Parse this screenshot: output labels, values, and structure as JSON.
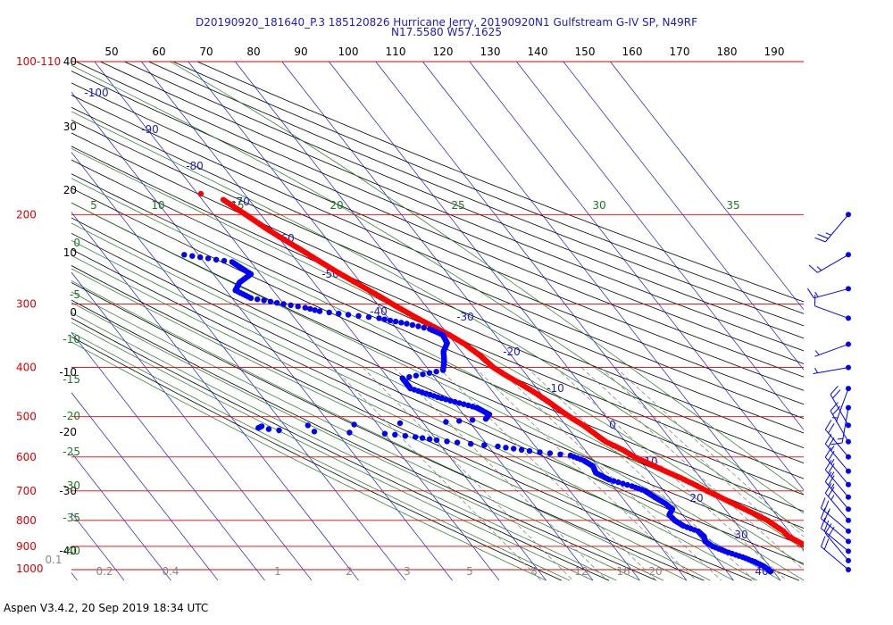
{
  "title": {
    "line1": "D20190920_181640_P.3 185120826 Hurricane Jerry, 20190920N1 Gulfstream G-IV SP, N49RF",
    "line2": "N17.5580 W57.1625"
  },
  "footer": "Aspen V3.4.2, 20 Sep 2019  18:34 UTC",
  "colors": {
    "isobar": "#dd0000",
    "isotherm": "#1a1acc",
    "dry_adiabat": "#000000",
    "moist_adiabat": "#1a7a1a",
    "mixing_ratio": "#888888",
    "temperature": "#ff0000",
    "dewpoint": "#0000ff"
  },
  "chart_data": {
    "type": "line",
    "title": "",
    "pressure_axis_labels": [
      "100-110",
      "200",
      "300",
      "400",
      "500",
      "600",
      "700",
      "800",
      "900",
      "1000"
    ],
    "pressure_label_values": [
      100,
      200,
      300,
      400,
      500,
      600,
      700,
      800,
      900,
      1000
    ],
    "temperature_axis_labels": [
      "50",
      "60",
      "70",
      "80",
      "90",
      "100",
      "110",
      "120",
      "130",
      "140",
      "150",
      "160",
      "170",
      "180",
      "190"
    ],
    "isotherm_labels": [
      "-100",
      "-90",
      "-80",
      "-70",
      "-60",
      "-50",
      "-40",
      "-30",
      "-20",
      "-10",
      "0",
      "10",
      "20",
      "30",
      "40"
    ],
    "isotherm_label_values": [
      -100,
      -90,
      -80,
      -70,
      -60,
      -50,
      -40,
      -30,
      -20,
      -10,
      0,
      10,
      20,
      30,
      40
    ],
    "left_scale_labels": [
      "40",
      "30",
      "20",
      "10",
      "0",
      "-10",
      "-20",
      "-30",
      "-40"
    ],
    "moist_adiabat_labels": [
      "5",
      "10",
      "15",
      "20",
      "25",
      "30",
      "35"
    ],
    "moist_left_labels": [
      "0",
      "-5",
      "-10",
      "-15",
      "-20",
      "-25",
      "-30",
      "-35",
      "-40"
    ],
    "mixing_ratio_labels": [
      "0.1",
      "0.2",
      "0.4",
      "1",
      "2",
      "3",
      "5",
      "8",
      "12",
      "16",
      "20"
    ],
    "series": [
      {
        "name": "Temperature",
        "points": [
          [
            187,
            -45.5
          ],
          [
            200,
            -43.2
          ],
          [
            215,
            -40.8
          ],
          [
            235,
            -37.2
          ],
          [
            255,
            -34.0
          ],
          [
            275,
            -30.6
          ],
          [
            290,
            -28.2
          ],
          [
            300,
            -26.8
          ],
          [
            315,
            -24.6
          ],
          [
            330,
            -22.2
          ],
          [
            345,
            -19.8
          ],
          [
            360,
            -18.0
          ],
          [
            380,
            -16.6
          ],
          [
            400,
            -15.8
          ],
          [
            415,
            -14.4
          ],
          [
            430,
            -12.8
          ],
          [
            450,
            -11.0
          ],
          [
            470,
            -9.6
          ],
          [
            490,
            -8.4
          ],
          [
            505,
            -7.4
          ],
          [
            520,
            -6.2
          ],
          [
            540,
            -5.2
          ],
          [
            560,
            -4.2
          ],
          [
            580,
            -2.0
          ],
          [
            600,
            -0.6
          ],
          [
            620,
            1.6
          ],
          [
            640,
            3.6
          ],
          [
            660,
            5.8
          ],
          [
            680,
            7.6
          ],
          [
            700,
            9.2
          ],
          [
            720,
            11.0
          ],
          [
            740,
            12.6
          ],
          [
            760,
            14.2
          ],
          [
            780,
            15.8
          ],
          [
            800,
            17.2
          ],
          [
            820,
            18.0
          ],
          [
            840,
            18.8
          ],
          [
            860,
            19.0
          ],
          [
            880,
            20.2
          ],
          [
            900,
            21.2
          ],
          [
            920,
            22.0
          ],
          [
            940,
            22.6
          ],
          [
            960,
            23.8
          ],
          [
            980,
            25.6
          ],
          [
            1000,
            27.4
          ],
          [
            1008,
            28.2
          ]
        ]
      },
      {
        "name": "Dewpoint",
        "points": [
          [
            240,
            -63.0
          ],
          [
            248,
            -54.0
          ],
          [
            262,
            -52.0
          ],
          [
            272,
            -55.8
          ],
          [
            282,
            -58.0
          ],
          [
            292,
            -56.0
          ],
          [
            300,
            -50.0
          ],
          [
            305,
            -46.0
          ],
          [
            310,
            -43.5
          ],
          [
            315,
            -38.0
          ],
          [
            320,
            -32.0
          ],
          [
            328,
            -27.0
          ],
          [
            336,
            -23.0
          ],
          [
            345,
            -21.2
          ],
          [
            358,
            -21.6
          ],
          [
            372,
            -23.8
          ],
          [
            388,
            -25.2
          ],
          [
            405,
            -27.0
          ],
          [
            420,
            -37.0
          ],
          [
            440,
            -37.0
          ],
          [
            460,
            -32.0
          ],
          [
            480,
            -26.0
          ],
          [
            495,
            -24.5
          ],
          [
            505,
            -26.0
          ],
          [
            512,
            -35.0
          ],
          [
            518,
            -55.0
          ],
          [
            522,
            -75.0
          ],
          [
            526,
            -76.0
          ],
          [
            532,
            -72.0
          ],
          [
            540,
            -50.0
          ],
          [
            548,
            -44.0
          ],
          [
            556,
            -40.0
          ],
          [
            562,
            -36.0
          ],
          [
            572,
            -28.0
          ],
          [
            584,
            -22.0
          ],
          [
            596,
            -14.0
          ],
          [
            610,
            -12.0
          ],
          [
            625,
            -11.0
          ],
          [
            645,
            -11.5
          ],
          [
            665,
            -9.8
          ],
          [
            685,
            -6.0
          ],
          [
            700,
            -4.0
          ],
          [
            720,
            -3.0
          ],
          [
            740,
            -1.8
          ],
          [
            760,
            -1.2
          ],
          [
            780,
            -2.8
          ],
          [
            800,
            -2.6
          ],
          [
            820,
            -1.6
          ],
          [
            840,
            0.6
          ],
          [
            860,
            1.0
          ],
          [
            880,
            0.4
          ],
          [
            900,
            1.2
          ],
          [
            920,
            3.0
          ],
          [
            945,
            5.8
          ],
          [
            965,
            7.6
          ],
          [
            985,
            8.8
          ],
          [
            1000,
            9.2
          ],
          [
            1008,
            9.4
          ]
        ]
      }
    ],
    "wind_barbs": [
      [
        200,
        220,
        25
      ],
      [
        240,
        240,
        15
      ],
      [
        280,
        255,
        15
      ],
      [
        320,
        290,
        10
      ],
      [
        360,
        250,
        5
      ],
      [
        400,
        260,
        5
      ],
      [
        440,
        200,
        5
      ],
      [
        480,
        190,
        15
      ],
      [
        520,
        330,
        20
      ],
      [
        560,
        330,
        20
      ],
      [
        600,
        320,
        20
      ],
      [
        640,
        320,
        25
      ],
      [
        680,
        320,
        25
      ],
      [
        720,
        320,
        25
      ],
      [
        760,
        320,
        25
      ],
      [
        800,
        320,
        25
      ],
      [
        840,
        310,
        25
      ],
      [
        880,
        310,
        20
      ],
      [
        920,
        310,
        20
      ],
      [
        960,
        320,
        20
      ],
      [
        1000,
        310,
        20
      ]
    ]
  }
}
